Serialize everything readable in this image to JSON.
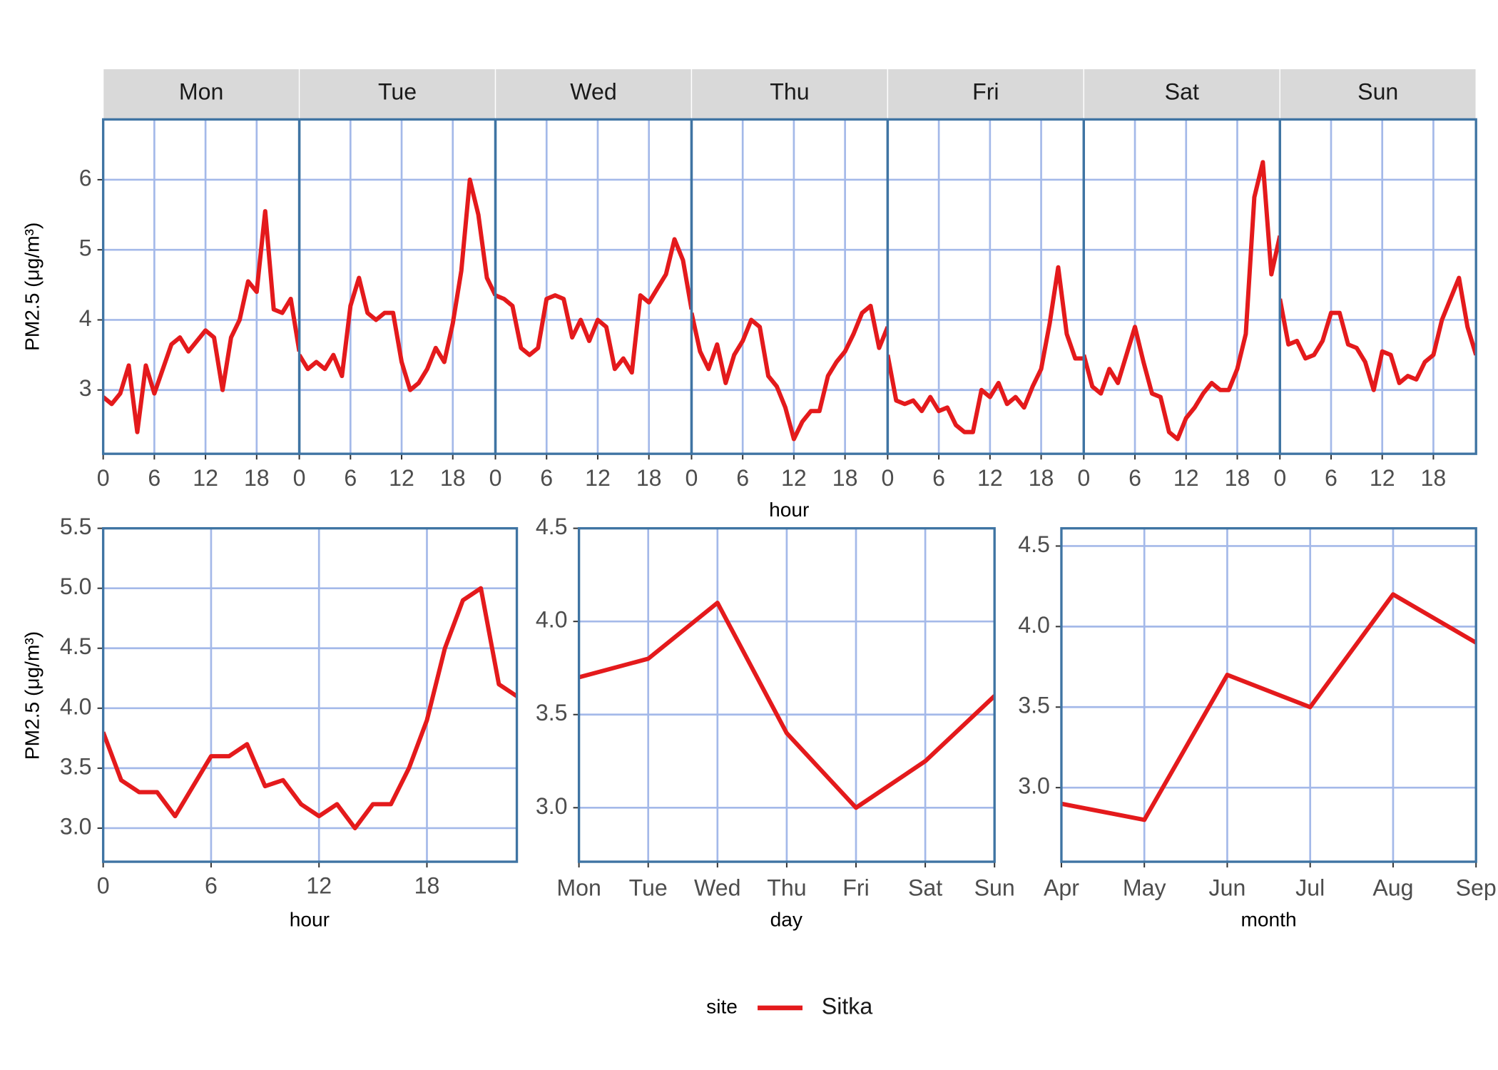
{
  "chart_data": [
    {
      "type": "line",
      "ylabel": "PM2.5 (μg/m³)",
      "xlabel": "hour",
      "legend_title": "site",
      "legend": "bottom",
      "grid": true,
      "facets": [
        "Mon",
        "Tue",
        "Wed",
        "Thu",
        "Fri",
        "Sat",
        "Sun"
      ],
      "x": [
        0,
        1,
        2,
        3,
        4,
        5,
        6,
        7,
        8,
        9,
        10,
        11,
        12,
        13,
        14,
        15,
        16,
        17,
        18,
        19,
        20,
        21,
        22,
        23
      ],
      "xlim": [
        0,
        23
      ],
      "xticks": [
        0,
        6,
        12,
        18
      ],
      "ylim": [
        2.09,
        6.86
      ],
      "yticks": [
        3,
        4,
        5,
        6
      ],
      "series": [
        {
          "name": "Sitka",
          "color": "#e41a1c",
          "values": [
            [
              2.9,
              2.8,
              2.95,
              3.35,
              2.4,
              3.35,
              2.95,
              3.3,
              3.65,
              3.75,
              3.55,
              3.7,
              3.85,
              3.75,
              3.0,
              3.75,
              4.0,
              4.55,
              4.4,
              5.55,
              4.15,
              4.1,
              4.3,
              3.55
            ],
            [
              3.5,
              3.3,
              3.4,
              3.3,
              3.5,
              3.2,
              4.2,
              4.6,
              4.1,
              4.0,
              4.1,
              4.1,
              3.4,
              3.0,
              3.1,
              3.3,
              3.6,
              3.4,
              3.95,
              4.7,
              6.0,
              5.5,
              4.6,
              4.35
            ],
            [
              4.35,
              4.3,
              4.2,
              3.6,
              3.5,
              3.6,
              4.3,
              4.35,
              4.3,
              3.75,
              4.0,
              3.7,
              4.0,
              3.9,
              3.3,
              3.45,
              3.25,
              4.35,
              4.25,
              4.45,
              4.65,
              5.15,
              4.85,
              4.15
            ],
            [
              4.1,
              3.55,
              3.3,
              3.65,
              3.1,
              3.5,
              3.7,
              4.0,
              3.9,
              3.2,
              3.05,
              2.75,
              2.3,
              2.55,
              2.7,
              2.7,
              3.2,
              3.4,
              3.55,
              3.8,
              4.1,
              4.2,
              3.6,
              3.9
            ],
            [
              3.5,
              2.85,
              2.8,
              2.85,
              2.7,
              2.9,
              2.7,
              2.75,
              2.5,
              2.4,
              2.4,
              3.0,
              2.9,
              3.1,
              2.8,
              2.9,
              2.75,
              3.05,
              3.3,
              3.95,
              4.75,
              3.8,
              3.45,
              3.45
            ],
            [
              3.5,
              3.05,
              2.95,
              3.3,
              3.1,
              3.5,
              3.9,
              3.4,
              2.95,
              2.9,
              2.4,
              2.3,
              2.6,
              2.75,
              2.95,
              3.1,
              3.0,
              3.0,
              3.3,
              3.8,
              5.75,
              6.25,
              4.65,
              5.2
            ],
            [
              4.3,
              3.65,
              3.7,
              3.45,
              3.5,
              3.7,
              4.1,
              4.1,
              3.65,
              3.6,
              3.4,
              3.0,
              3.55,
              3.5,
              3.1,
              3.2,
              3.15,
              3.4,
              3.5,
              4.0,
              4.3,
              4.6,
              3.9,
              3.5
            ]
          ]
        }
      ]
    },
    {
      "type": "line",
      "ylabel": "PM2.5 (μg/m³)",
      "xlabel": "hour",
      "grid": true,
      "x": [
        0,
        1,
        2,
        3,
        4,
        5,
        6,
        7,
        8,
        9,
        10,
        11,
        12,
        13,
        14,
        15,
        16,
        17,
        18,
        19,
        20,
        21,
        22,
        23
      ],
      "xlim": [
        0,
        23
      ],
      "xticks": [
        0,
        6,
        12,
        18
      ],
      "ylim": [
        2.72,
        5.5
      ],
      "yticks": [
        {
          "value": 3,
          "label": "3.0"
        },
        3.5,
        {
          "value": 4,
          "label": "4.0"
        },
        4.5,
        {
          "value": 5,
          "label": "5.0"
        },
        5.5
      ],
      "series": [
        {
          "color": "#e41a1c",
          "values": [
            3.8,
            3.4,
            3.3,
            3.3,
            3.1,
            3.35,
            3.6,
            3.6,
            3.7,
            3.35,
            3.4,
            3.2,
            3.1,
            3.2,
            3.0,
            3.2,
            3.2,
            3.5,
            3.9,
            4.5,
            4.9,
            5.0,
            4.2,
            4.1
          ]
        }
      ]
    },
    {
      "type": "line",
      "xlabel": "day",
      "grid": true,
      "categories": [
        "Mon",
        "Tue",
        "Wed",
        "Thu",
        "Fri",
        "Sat",
        "Sun"
      ],
      "ylim": [
        2.71,
        4.5
      ],
      "yticks": [
        {
          "value": 3,
          "label": "3.0"
        },
        3.5,
        {
          "value": 4,
          "label": "4.0"
        },
        4.5
      ],
      "series": [
        {
          "color": "#e41a1c",
          "values": [
            3.7,
            3.8,
            4.1,
            3.4,
            3.0,
            3.25,
            3.6
          ]
        }
      ]
    },
    {
      "type": "line",
      "xlabel": "month",
      "grid": true,
      "categories": [
        "Apr",
        "May",
        "Jun",
        "Jul",
        "Aug",
        "Sep"
      ],
      "ylim": [
        2.54,
        4.61
      ],
      "yticks": [
        {
          "value": 3,
          "label": "3.0"
        },
        3.5,
        {
          "value": 4,
          "label": "4.0"
        },
        4.5
      ],
      "series": [
        {
          "color": "#e41a1c",
          "values": [
            2.9,
            2.8,
            3.7,
            3.5,
            4.2,
            3.9
          ]
        }
      ]
    }
  ]
}
